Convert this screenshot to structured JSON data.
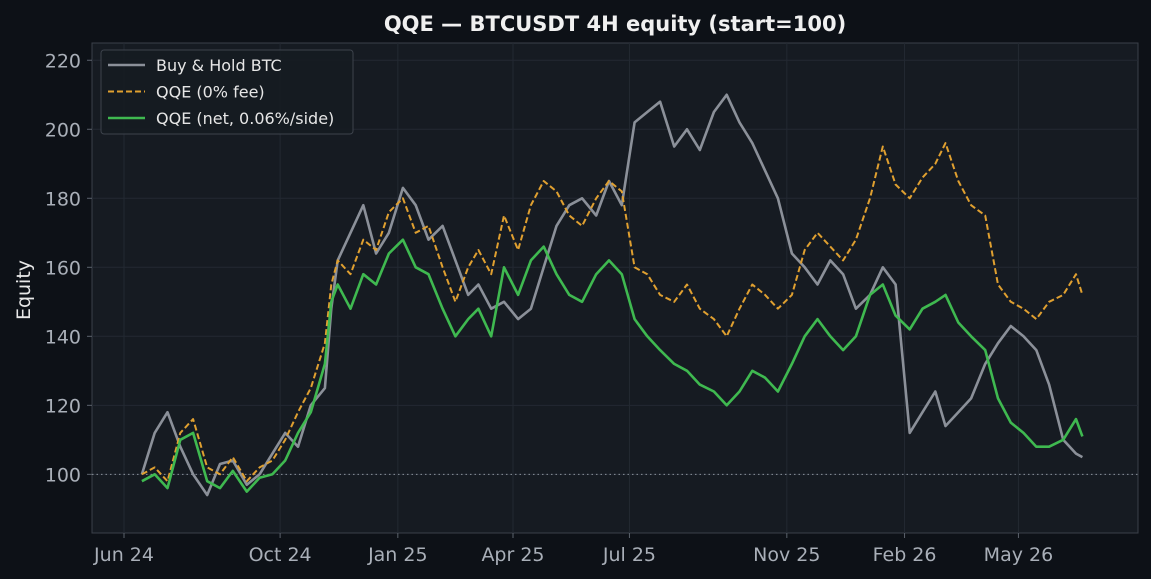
{
  "chart_data": {
    "type": "line",
    "title": "QQE — BTCUSDT 4H equity (start=100)",
    "xlabel": "",
    "ylabel": "Equity",
    "xlim": [
      "2024-06-01",
      "2026-07-10"
    ],
    "ylim": [
      83,
      225
    ],
    "grid": true,
    "legend_position": "top-left",
    "reference_line": {
      "y": 100,
      "style": "dotted"
    },
    "x_ticks": [
      {
        "date": "2024-06-01",
        "label": "Jun 24"
      },
      {
        "date": "2024-10-01",
        "label": "Oct 24"
      },
      {
        "date": "2025-01-01",
        "label": "Jan 25"
      },
      {
        "date": "2025-04-01",
        "label": "Apr 25"
      },
      {
        "date": "2025-07-01",
        "label": "Jul 25"
      },
      {
        "date": "2025-11-01",
        "label": "Nov 25"
      },
      {
        "date": "2026-02-01",
        "label": "Feb 26"
      },
      {
        "date": "2026-05-01",
        "label": "May 26"
      }
    ],
    "y_ticks": [
      100,
      120,
      140,
      160,
      180,
      200,
      220
    ],
    "series": [
      {
        "name": "Buy & Hold BTC",
        "color": "#8b9099",
        "dash": "solid",
        "x": [
          "2024-06-15",
          "2024-06-25",
          "2024-07-05",
          "2024-07-15",
          "2024-07-25",
          "2024-08-05",
          "2024-08-15",
          "2024-08-25",
          "2024-09-05",
          "2024-09-15",
          "2024-09-25",
          "2024-10-05",
          "2024-10-15",
          "2024-10-25",
          "2024-11-05",
          "2024-11-10",
          "2024-11-15",
          "2024-11-25",
          "2024-12-05",
          "2024-12-15",
          "2024-12-25",
          "2025-01-05",
          "2025-01-15",
          "2025-01-25",
          "2025-02-05",
          "2025-02-15",
          "2025-02-25",
          "2025-03-05",
          "2025-03-15",
          "2025-03-25",
          "2025-04-05",
          "2025-04-15",
          "2025-04-25",
          "2025-05-05",
          "2025-05-15",
          "2025-05-25",
          "2025-06-05",
          "2025-06-15",
          "2025-06-25",
          "2025-07-05",
          "2025-07-15",
          "2025-07-25",
          "2025-08-05",
          "2025-08-15",
          "2025-08-25",
          "2025-09-05",
          "2025-09-15",
          "2025-09-25",
          "2025-10-05",
          "2025-10-15",
          "2025-10-25",
          "2025-11-05",
          "2025-11-15",
          "2025-11-25",
          "2025-12-05",
          "2025-12-15",
          "2025-12-25",
          "2026-01-05",
          "2026-01-15",
          "2026-01-25",
          "2026-02-05",
          "2026-02-15",
          "2026-02-25",
          "2026-03-05",
          "2026-03-15",
          "2026-03-25",
          "2026-04-05",
          "2026-04-15",
          "2026-04-25",
          "2026-05-05",
          "2026-05-15",
          "2026-05-25",
          "2026-06-05",
          "2026-06-15",
          "2026-06-20"
        ],
        "values": [
          100,
          112,
          118,
          108,
          100,
          94,
          103,
          104,
          97,
          100,
          106,
          112,
          108,
          120,
          125,
          148,
          162,
          170,
          178,
          164,
          170,
          183,
          178,
          168,
          172,
          162,
          152,
          155,
          148,
          150,
          145,
          148,
          160,
          172,
          178,
          180,
          175,
          185,
          178,
          202,
          205,
          208,
          195,
          200,
          194,
          205,
          210,
          202,
          196,
          188,
          180,
          164,
          160,
          155,
          162,
          158,
          148,
          152,
          160,
          155,
          112,
          118,
          124,
          114,
          118,
          122,
          132,
          138,
          143,
          140,
          136,
          126,
          110,
          106,
          105
        ]
      },
      {
        "name": "QQE (0% fee)",
        "color": "#e0a030",
        "dash": "dashed",
        "x": [
          "2024-06-15",
          "2024-06-25",
          "2024-07-05",
          "2024-07-15",
          "2024-07-25",
          "2024-08-05",
          "2024-08-15",
          "2024-08-25",
          "2024-09-05",
          "2024-09-15",
          "2024-09-25",
          "2024-10-05",
          "2024-10-15",
          "2024-10-25",
          "2024-11-05",
          "2024-11-10",
          "2024-11-15",
          "2024-11-25",
          "2024-12-05",
          "2024-12-15",
          "2024-12-25",
          "2025-01-05",
          "2025-01-15",
          "2025-01-25",
          "2025-02-05",
          "2025-02-15",
          "2025-02-25",
          "2025-03-05",
          "2025-03-15",
          "2025-03-25",
          "2025-04-05",
          "2025-04-15",
          "2025-04-25",
          "2025-05-05",
          "2025-05-15",
          "2025-05-25",
          "2025-06-05",
          "2025-06-15",
          "2025-06-25",
          "2025-07-05",
          "2025-07-15",
          "2025-07-25",
          "2025-08-05",
          "2025-08-15",
          "2025-08-25",
          "2025-09-05",
          "2025-09-15",
          "2025-09-25",
          "2025-10-05",
          "2025-10-15",
          "2025-10-25",
          "2025-11-05",
          "2025-11-15",
          "2025-11-25",
          "2025-12-05",
          "2025-12-15",
          "2025-12-25",
          "2026-01-05",
          "2026-01-15",
          "2026-01-25",
          "2026-02-05",
          "2026-02-15",
          "2026-02-25",
          "2026-03-05",
          "2026-03-15",
          "2026-03-25",
          "2026-04-05",
          "2026-04-15",
          "2026-04-25",
          "2026-05-05",
          "2026-05-15",
          "2026-05-25",
          "2026-06-05",
          "2026-06-15",
          "2026-06-20"
        ],
        "values": [
          100,
          102,
          98,
          112,
          116,
          102,
          100,
          105,
          98,
          102,
          104,
          110,
          118,
          125,
          138,
          155,
          162,
          158,
          168,
          165,
          176,
          180,
          170,
          172,
          160,
          150,
          160,
          165,
          158,
          175,
          165,
          178,
          185,
          182,
          175,
          172,
          180,
          185,
          182,
          160,
          158,
          152,
          150,
          155,
          148,
          145,
          140,
          148,
          155,
          152,
          148,
          152,
          165,
          170,
          166,
          162,
          168,
          180,
          195,
          184,
          180,
          186,
          190,
          196,
          185,
          178,
          175,
          155,
          150,
          148,
          145,
          150,
          152,
          158,
          152
        ]
      },
      {
        "name": "QQE (net, 0.06%/side)",
        "color": "#3fb950",
        "dash": "solid",
        "x": [
          "2024-06-15",
          "2024-06-25",
          "2024-07-05",
          "2024-07-15",
          "2024-07-25",
          "2024-08-05",
          "2024-08-15",
          "2024-08-25",
          "2024-09-05",
          "2024-09-15",
          "2024-09-25",
          "2024-10-05",
          "2024-10-15",
          "2024-10-25",
          "2024-11-05",
          "2024-11-10",
          "2024-11-15",
          "2024-11-25",
          "2024-12-05",
          "2024-12-15",
          "2024-12-25",
          "2025-01-05",
          "2025-01-15",
          "2025-01-25",
          "2025-02-05",
          "2025-02-15",
          "2025-02-25",
          "2025-03-05",
          "2025-03-15",
          "2025-03-25",
          "2025-04-05",
          "2025-04-15",
          "2025-04-25",
          "2025-05-05",
          "2025-05-15",
          "2025-05-25",
          "2025-06-05",
          "2025-06-15",
          "2025-06-25",
          "2025-07-05",
          "2025-07-15",
          "2025-07-25",
          "2025-08-05",
          "2025-08-15",
          "2025-08-25",
          "2025-09-05",
          "2025-09-15",
          "2025-09-25",
          "2025-10-05",
          "2025-10-15",
          "2025-10-25",
          "2025-11-05",
          "2025-11-15",
          "2025-11-25",
          "2025-12-05",
          "2025-12-15",
          "2025-12-25",
          "2026-01-05",
          "2026-01-15",
          "2026-01-25",
          "2026-02-05",
          "2026-02-15",
          "2026-02-25",
          "2026-03-05",
          "2026-03-15",
          "2026-03-25",
          "2026-04-05",
          "2026-04-15",
          "2026-04-25",
          "2026-05-05",
          "2026-05-15",
          "2026-05-25",
          "2026-06-05",
          "2026-06-15",
          "2026-06-20"
        ],
        "values": [
          98,
          100,
          96,
          110,
          112,
          98,
          96,
          101,
          95,
          99,
          100,
          104,
          112,
          118,
          132,
          150,
          155,
          148,
          158,
          155,
          164,
          168,
          160,
          158,
          148,
          140,
          145,
          148,
          140,
          160,
          152,
          162,
          166,
          158,
          152,
          150,
          158,
          162,
          158,
          145,
          140,
          136,
          132,
          130,
          126,
          124,
          120,
          124,
          130,
          128,
          124,
          132,
          140,
          145,
          140,
          136,
          140,
          152,
          155,
          146,
          142,
          148,
          150,
          152,
          144,
          140,
          136,
          122,
          115,
          112,
          108,
          108,
          110,
          116,
          111
        ]
      }
    ]
  }
}
